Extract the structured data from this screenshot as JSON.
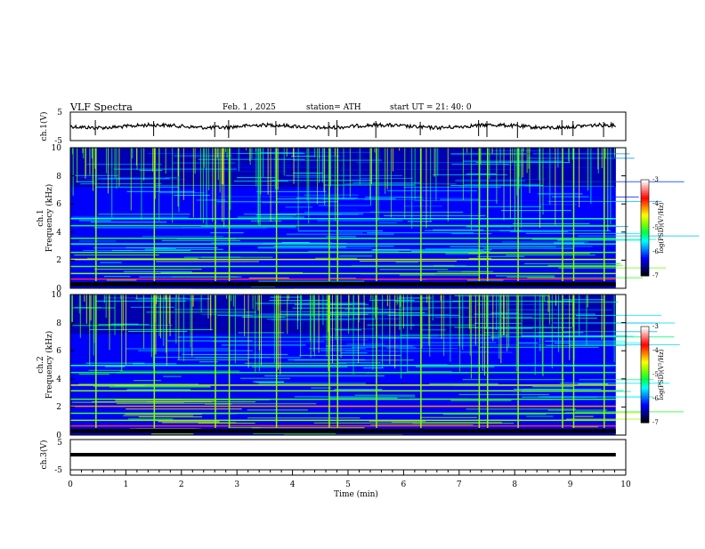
{
  "chart_data": {
    "type": "heatmap",
    "title": "VLF  Spectra",
    "date": "Feb. 1  , 2025",
    "station": "station= ATH",
    "start_ut": "start  UT  =   21: 40: 0",
    "xlabel": "Time  (min)",
    "xlim": [
      0,
      10
    ],
    "x_ticks": [
      "0",
      "1",
      "2",
      "3",
      "4",
      "5",
      "6",
      "7",
      "8",
      "9",
      "10"
    ],
    "panels": [
      {
        "id": "ch1-waveform",
        "type": "line",
        "ylabel": "ch.1(V)",
        "ylim": [
          -5,
          5
        ],
        "y_ticks": [
          "5",
          "-5"
        ]
      },
      {
        "id": "ch1-spectrogram",
        "type": "heatmap",
        "ylabel_top": "ch.1",
        "ylabel": "Frequency  (kHz)",
        "ylim": [
          0,
          10
        ],
        "y_ticks": [
          "0",
          "2",
          "4",
          "6",
          "8",
          "10"
        ]
      },
      {
        "id": "ch2-spectrogram",
        "type": "heatmap",
        "ylabel_top": "ch.2",
        "ylabel": "Frequency  (kHz)",
        "ylim": [
          0,
          10
        ],
        "y_ticks": [
          "0",
          "2",
          "4",
          "6",
          "8",
          "10"
        ]
      },
      {
        "id": "ch3-waveform",
        "type": "line",
        "ylabel": "ch.3(V)",
        "ylim": [
          -5,
          5
        ],
        "y_ticks": [
          "5",
          "-5"
        ]
      }
    ],
    "colorbar": {
      "label": "log(PSD)(V²/Hz)",
      "range": [
        -7,
        -3
      ],
      "ticks": [
        "-3",
        "-4",
        "-5",
        "-6",
        "-7"
      ],
      "colors": [
        "#000000",
        "#00008b",
        "#0000ff",
        "#0080ff",
        "#00ffff",
        "#00ff40",
        "#80ff00",
        "#ffff00",
        "#ff8000",
        "#ff0000",
        "#ff8080",
        "#ffffff"
      ]
    },
    "data_end_min": 9.82,
    "impulse_times_min": [
      0.45,
      1.5,
      2.6,
      2.85,
      3.7,
      4.65,
      4.8,
      5.5,
      6.3,
      7.35,
      7.5,
      8.05,
      8.85,
      9.05,
      9.6
    ]
  }
}
